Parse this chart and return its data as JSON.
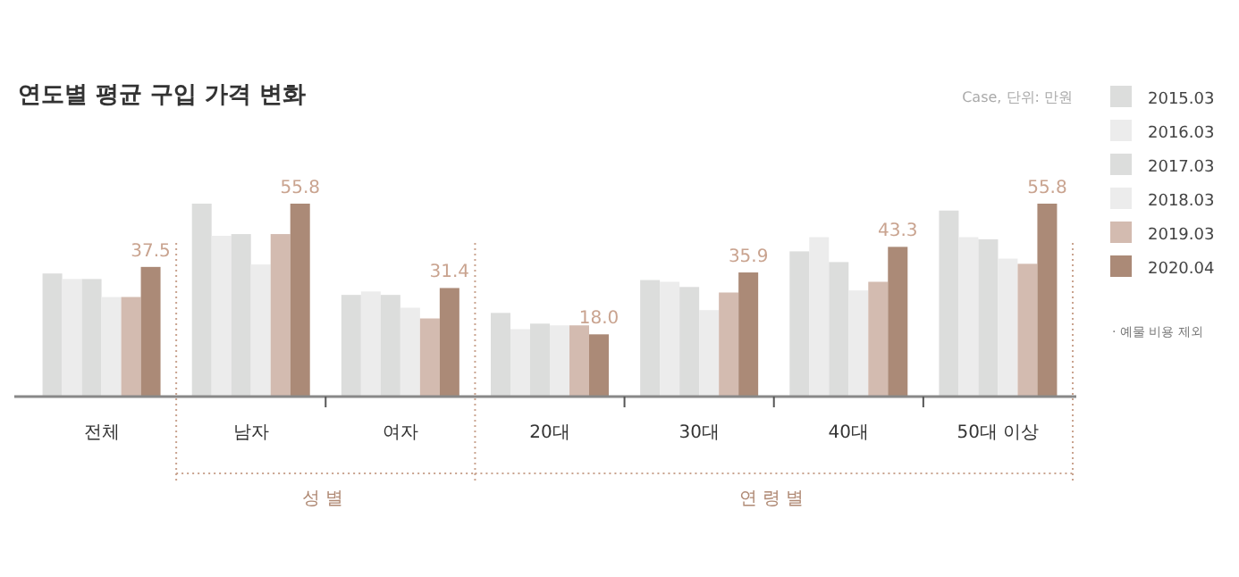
{
  "chart_data": {
    "type": "bar",
    "title": "연도별 평균 구입 가격 변화",
    "subtitle": "Case, 단위: 만원",
    "categories": [
      "전체",
      "남자",
      "여자",
      "20대",
      "30대",
      "40대",
      "50대 이상"
    ],
    "series": [
      {
        "name": "2015.03",
        "color": "#dcdddc",
        "values": [
          35.6,
          55.8,
          29.4,
          24.2,
          33.7,
          42.0,
          53.8
        ]
      },
      {
        "name": "2016.03",
        "color": "#ececec",
        "values": [
          34.0,
          46.5,
          30.4,
          19.5,
          33.2,
          46.1,
          46.1
        ]
      },
      {
        "name": "2017.03",
        "color": "#dcdddc",
        "values": [
          34.0,
          47.0,
          29.4,
          21.1,
          31.7,
          38.9,
          45.5
        ]
      },
      {
        "name": "2018.03",
        "color": "#ececec",
        "values": [
          28.8,
          38.2,
          25.7,
          20.6,
          25.0,
          30.7,
          39.9
        ]
      },
      {
        "name": "2019.03",
        "color": "#d3bbb0",
        "values": [
          28.8,
          47.0,
          22.6,
          20.6,
          30.1,
          33.2,
          38.4
        ]
      },
      {
        "name": "2020.04",
        "color": "#ab8a77",
        "values": [
          37.5,
          55.8,
          31.4,
          18.0,
          35.9,
          43.3,
          55.8
        ],
        "value_labels": [
          "37.5",
          "55.8",
          "31.4",
          "18.0",
          "35.9",
          "43.3",
          "55.8"
        ]
      }
    ],
    "annotations": [
      "성별",
      "연령별",
      "· 예물 비용 제외"
    ],
    "legend": "right"
  }
}
